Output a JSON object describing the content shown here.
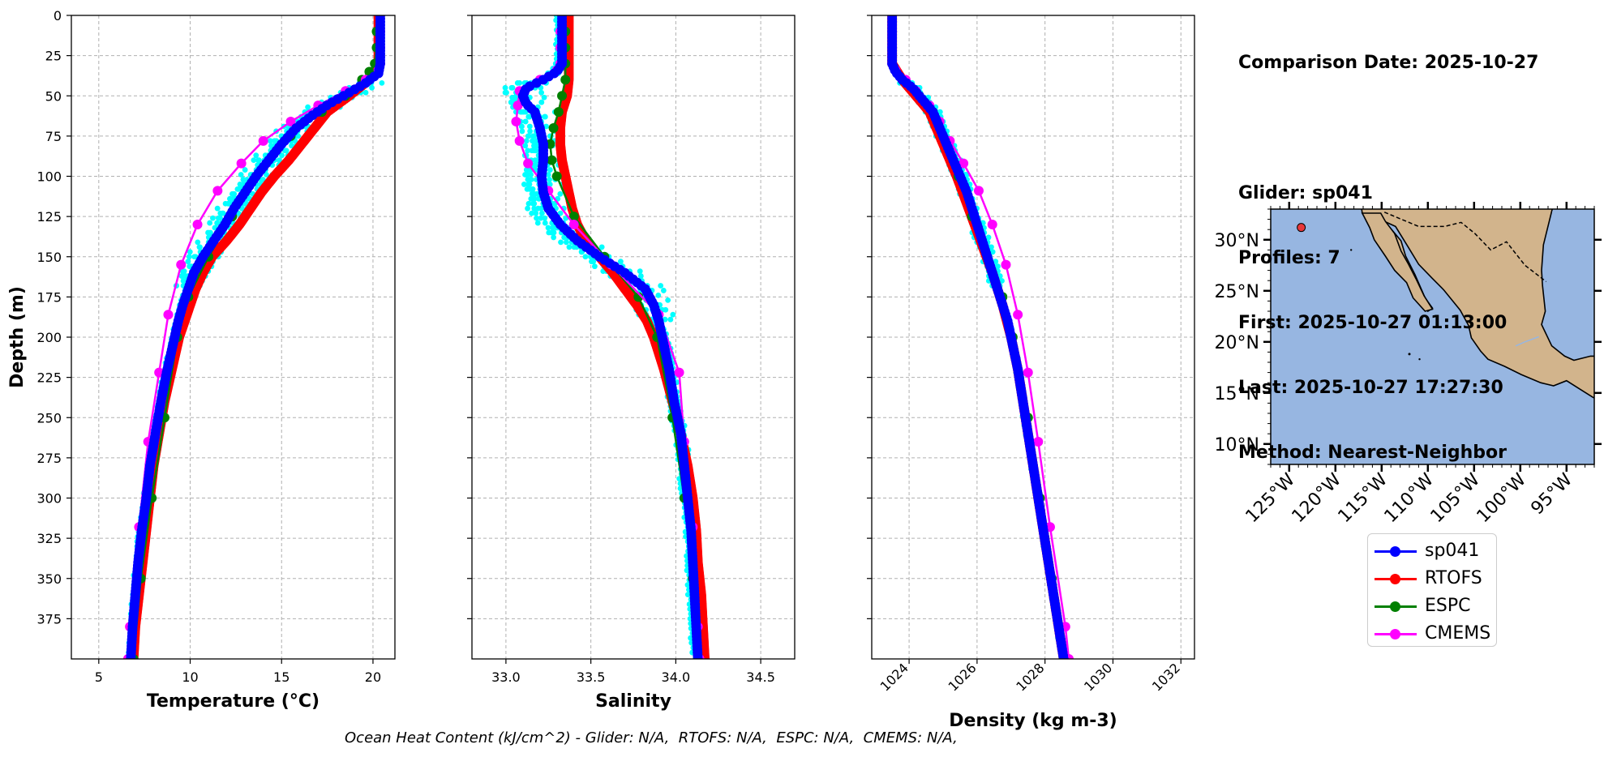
{
  "info": {
    "comparison_date": "Comparison Date: 2025-10-27",
    "glider": "Glider: sp041",
    "profiles": "Profiles: 7",
    "first": "First: 2025-10-27 01:13:00",
    "last": "Last: 2025-10-27 17:27:30",
    "method": "Method: Nearest-Neighbor"
  },
  "footer": "Ocean Heat Content (kJ/cm^2) - Glider: N/A,  RTOFS: N/A,  ESPC: N/A,  CMEMS: N/A,",
  "legend": [
    {
      "label": "sp041",
      "color": "#0000ff"
    },
    {
      "label": "RTOFS",
      "color": "#ff0000"
    },
    {
      "label": "ESPC",
      "color": "#008000"
    },
    {
      "label": "CMEMS",
      "color": "#ff00ff"
    }
  ],
  "chart_data": [
    {
      "type": "line",
      "xlabel": "Temperature (°C)",
      "ylabel": "Depth (m)",
      "xlim": [
        3.5,
        21.2
      ],
      "ylim": [
        400,
        0
      ],
      "xticks": [
        5,
        10,
        15,
        20
      ],
      "yticks": [
        0,
        25,
        50,
        75,
        100,
        125,
        150,
        175,
        200,
        225,
        250,
        275,
        300,
        325,
        350,
        375
      ],
      "grid": true,
      "glider_raw_color": "#00ffff",
      "series": [
        {
          "name": "sp041",
          "color": "#0000ff",
          "depth": [
            0,
            10,
            20,
            30,
            36,
            42,
            48,
            55,
            62,
            70,
            80,
            90,
            100,
            110,
            120,
            130,
            140,
            150,
            160,
            170,
            180,
            190,
            200,
            220,
            240,
            260,
            280,
            300,
            320,
            340,
            360,
            380,
            400
          ],
          "values": [
            20.4,
            20.4,
            20.4,
            20.4,
            20.3,
            19.6,
            18.7,
            17.6,
            16.7,
            15.8,
            15.0,
            14.3,
            13.6,
            13.0,
            12.4,
            11.9,
            11.3,
            10.7,
            10.2,
            9.9,
            9.6,
            9.35,
            9.15,
            8.75,
            8.4,
            8.1,
            7.8,
            7.6,
            7.35,
            7.15,
            7.0,
            6.85,
            6.75
          ]
        },
        {
          "name": "RTOFS",
          "color": "#ff0000",
          "depth": [
            0,
            10,
            20,
            30,
            35,
            40,
            50,
            60,
            70,
            80,
            90,
            100,
            110,
            120,
            130,
            140,
            150,
            160,
            170,
            180,
            190,
            200,
            220,
            240,
            260,
            280,
            300,
            320,
            340,
            360,
            380,
            400
          ],
          "values": [
            20.3,
            20.3,
            20.3,
            20.3,
            20.2,
            19.8,
            18.7,
            17.5,
            16.8,
            16.1,
            15.4,
            14.6,
            13.9,
            13.3,
            12.7,
            12.0,
            11.2,
            10.7,
            10.3,
            10.0,
            9.7,
            9.4,
            9.0,
            8.6,
            8.3,
            8.0,
            7.8,
            7.6,
            7.4,
            7.2,
            7.0,
            6.9
          ]
        },
        {
          "name": "ESPC",
          "color": "#008000",
          "depth": [
            0,
            10,
            20,
            30,
            35,
            40,
            50,
            60,
            75,
            100,
            125,
            150,
            175,
            200,
            250,
            300,
            350,
            400
          ],
          "values": [
            20.2,
            20.2,
            20.2,
            20.1,
            19.8,
            19.4,
            18.5,
            17.2,
            15.5,
            13.6,
            12.3,
            11.0,
            9.9,
            9.3,
            8.6,
            7.9,
            7.3,
            6.9
          ]
        },
        {
          "name": "CMEMS",
          "color": "#ff00ff",
          "depth": [
            0,
            10,
            20,
            30,
            34,
            40,
            47,
            56,
            66,
            78,
            92,
            109,
            130,
            155,
            186,
            222,
            265,
            318,
            380,
            400
          ],
          "values": [
            20.4,
            20.4,
            20.4,
            20.4,
            20.3,
            19.6,
            18.5,
            17.0,
            15.5,
            14.0,
            12.8,
            11.5,
            10.4,
            9.5,
            8.8,
            8.3,
            7.7,
            7.2,
            6.7,
            6.6
          ]
        }
      ]
    },
    {
      "type": "line",
      "xlabel": "Salinity",
      "ylabel": "",
      "xlim": [
        32.8,
        34.7
      ],
      "ylim": [
        400,
        0
      ],
      "xticks": [
        33.0,
        33.5,
        34.0,
        34.5
      ],
      "grid": true,
      "glider_raw_color": "#00ffff",
      "series": [
        {
          "name": "sp041",
          "color": "#0000ff",
          "depth": [
            0,
            10,
            20,
            30,
            35,
            40,
            45,
            50,
            55,
            60,
            70,
            80,
            90,
            100,
            110,
            120,
            130,
            140,
            150,
            160,
            170,
            180,
            190,
            200,
            220,
            240,
            260,
            280,
            300,
            320,
            340,
            360,
            380,
            400
          ],
          "values": [
            33.33,
            33.33,
            33.33,
            33.33,
            33.3,
            33.22,
            33.12,
            33.1,
            33.12,
            33.17,
            33.2,
            33.22,
            33.22,
            33.21,
            33.22,
            33.25,
            33.32,
            33.42,
            33.55,
            33.7,
            33.82,
            33.87,
            33.9,
            33.92,
            33.96,
            33.99,
            34.03,
            34.05,
            34.07,
            34.09,
            34.1,
            34.11,
            34.12,
            34.13
          ]
        },
        {
          "name": "RTOFS",
          "color": "#ff0000",
          "depth": [
            0,
            10,
            20,
            30,
            40,
            50,
            60,
            70,
            80,
            90,
            100,
            110,
            120,
            130,
            140,
            150,
            160,
            170,
            180,
            190,
            200,
            220,
            240,
            260,
            280,
            300,
            320,
            340,
            360,
            380,
            400
          ],
          "values": [
            33.37,
            33.37,
            33.37,
            33.37,
            33.37,
            33.36,
            33.33,
            33.32,
            33.32,
            33.33,
            33.35,
            33.37,
            33.39,
            33.42,
            33.47,
            33.55,
            33.63,
            33.7,
            33.77,
            33.83,
            33.87,
            33.93,
            33.98,
            34.03,
            34.07,
            34.1,
            34.12,
            34.13,
            34.15,
            34.16,
            34.17
          ]
        },
        {
          "name": "ESPC",
          "color": "#008000",
          "depth": [
            0,
            10,
            20,
            30,
            40,
            50,
            60,
            70,
            80,
            90,
            100,
            125,
            150,
            175,
            200,
            250,
            300,
            350,
            400
          ],
          "values": [
            33.35,
            33.35,
            33.35,
            33.35,
            33.35,
            33.33,
            33.31,
            33.28,
            33.26,
            33.27,
            33.3,
            33.4,
            33.58,
            33.78,
            33.89,
            33.98,
            34.05,
            34.1,
            34.13
          ]
        },
        {
          "name": "CMEMS",
          "color": "#ff00ff",
          "depth": [
            0,
            10,
            20,
            30,
            34,
            40,
            47,
            56,
            66,
            78,
            92,
            109,
            130,
            155,
            186,
            222,
            265,
            318,
            380,
            400
          ],
          "values": [
            33.32,
            33.32,
            33.32,
            33.32,
            33.3,
            33.2,
            33.08,
            33.07,
            33.06,
            33.08,
            33.13,
            33.25,
            33.4,
            33.62,
            33.9,
            34.02,
            34.05,
            34.1,
            34.13,
            34.14
          ]
        }
      ]
    },
    {
      "type": "line",
      "xlabel": "Density (kg m-3)",
      "ylabel": "",
      "xlim": [
        1022.9,
        1032.4
      ],
      "ylim": [
        400,
        0
      ],
      "xticks": [
        1024,
        1026,
        1028,
        1030,
        1032
      ],
      "grid": true,
      "glider_raw_color": "#00ffff",
      "series": [
        {
          "name": "sp041",
          "color": "#0000ff",
          "depth": [
            0,
            10,
            20,
            30,
            35,
            40,
            45,
            50,
            55,
            60,
            70,
            80,
            90,
            100,
            110,
            120,
            130,
            140,
            150,
            160,
            170,
            180,
            190,
            200,
            220,
            240,
            260,
            280,
            300,
            320,
            340,
            360,
            380,
            400
          ],
          "values": [
            1023.5,
            1023.5,
            1023.5,
            1023.5,
            1023.6,
            1023.8,
            1024.1,
            1024.3,
            1024.5,
            1024.7,
            1024.9,
            1025.1,
            1025.3,
            1025.5,
            1025.7,
            1025.85,
            1026.0,
            1026.15,
            1026.3,
            1026.45,
            1026.6,
            1026.75,
            1026.9,
            1027.0,
            1027.2,
            1027.35,
            1027.5,
            1027.65,
            1027.8,
            1027.95,
            1028.1,
            1028.25,
            1028.4,
            1028.55
          ]
        },
        {
          "name": "RTOFS",
          "color": "#ff0000",
          "depth": [
            0,
            10,
            20,
            30,
            40,
            50,
            60,
            70,
            80,
            90,
            100,
            120,
            140,
            160,
            180,
            200,
            220,
            240,
            260,
            280,
            300,
            320,
            340,
            360,
            380,
            400
          ],
          "values": [
            1023.5,
            1023.5,
            1023.5,
            1023.5,
            1023.8,
            1024.2,
            1024.6,
            1024.8,
            1025.0,
            1025.2,
            1025.4,
            1025.75,
            1026.1,
            1026.45,
            1026.75,
            1027.0,
            1027.2,
            1027.35,
            1027.5,
            1027.65,
            1027.8,
            1027.95,
            1028.1,
            1028.25,
            1028.4,
            1028.55
          ]
        },
        {
          "name": "ESPC",
          "color": "#008000",
          "depth": [
            0,
            10,
            20,
            30,
            40,
            50,
            60,
            75,
            90,
            100,
            125,
            150,
            175,
            200,
            250,
            300,
            350,
            400
          ],
          "values": [
            1023.5,
            1023.5,
            1023.5,
            1023.5,
            1023.8,
            1024.3,
            1024.7,
            1025.0,
            1025.3,
            1025.45,
            1025.85,
            1026.3,
            1026.75,
            1027.05,
            1027.5,
            1027.85,
            1028.2,
            1028.55
          ]
        },
        {
          "name": "CMEMS",
          "color": "#ff00ff",
          "depth": [
            0,
            10,
            20,
            30,
            34,
            40,
            47,
            56,
            66,
            78,
            92,
            109,
            130,
            155,
            186,
            222,
            265,
            318,
            380,
            400
          ],
          "values": [
            1023.5,
            1023.5,
            1023.5,
            1023.5,
            1023.6,
            1023.9,
            1024.2,
            1024.6,
            1024.9,
            1025.2,
            1025.6,
            1026.05,
            1026.45,
            1026.85,
            1027.2,
            1027.5,
            1027.8,
            1028.15,
            1028.6,
            1028.7
          ]
        }
      ]
    },
    {
      "type": "map",
      "lon_range": [
        -127,
        -92
      ],
      "lat_range": [
        8,
        33
      ],
      "lon_ticks": [
        "125°W",
        "120°W",
        "115°W",
        "110°W",
        "105°W",
        "100°W",
        "95°W"
      ],
      "lat_ticks": [
        "30°N",
        "25°N",
        "20°N",
        "15°N",
        "10°N"
      ],
      "ocean_color": "#97b6e1",
      "land_color": "#d2b48c",
      "glider_position": {
        "lon": -123.7,
        "lat": 31.2,
        "color": "#e8373a"
      }
    }
  ]
}
